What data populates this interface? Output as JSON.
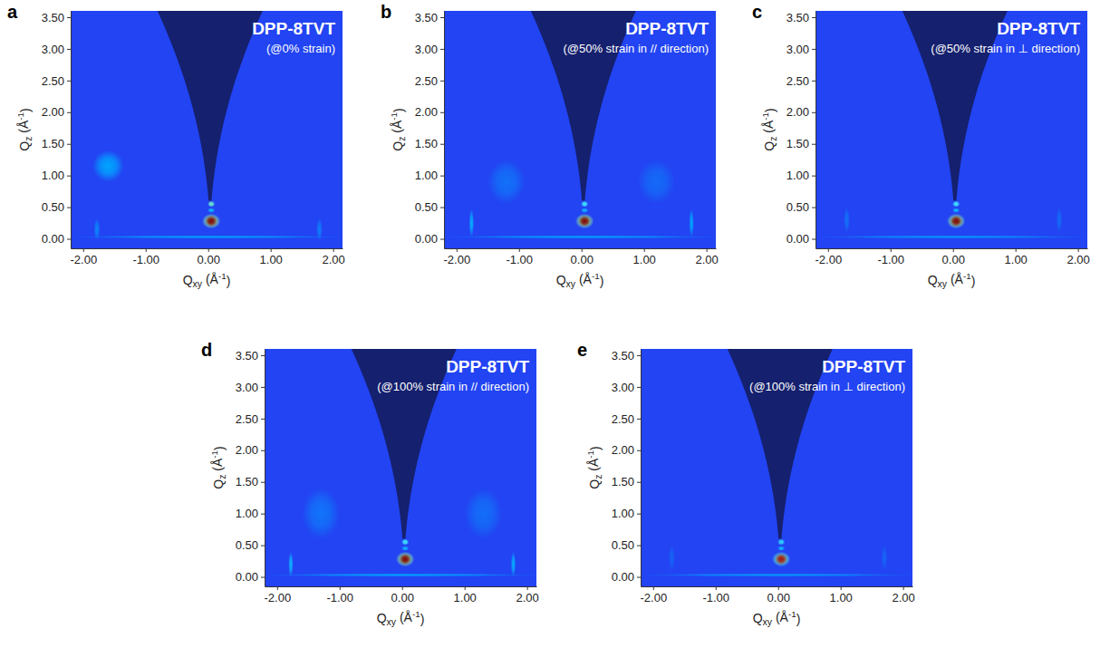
{
  "chart_data": [
    {
      "type": "heatmap",
      "panel": "a",
      "title": "DPP-8TVT",
      "subtitle": "(@0% strain)",
      "x_label": "Qxy (Å-1)",
      "y_label": "Qz (Å-1)",
      "xlim": [
        -2.2,
        2.15
      ],
      "ylim": [
        -0.15,
        3.6
      ],
      "xticks": [
        {
          "value": -2,
          "label": "-2.00"
        },
        {
          "value": -1,
          "label": "-1.00"
        },
        {
          "value": 0,
          "label": "0.00"
        },
        {
          "value": 1,
          "label": "1.00"
        },
        {
          "value": 2,
          "label": "2.00"
        }
      ],
      "yticks": [
        {
          "value": 0,
          "label": "0.00"
        },
        {
          "value": 0.5,
          "label": "0.50"
        },
        {
          "value": 1,
          "label": "1.00"
        },
        {
          "value": 1.5,
          "label": "1.50"
        },
        {
          "value": 2,
          "label": "2.00"
        },
        {
          "value": 2.5,
          "label": "2.50"
        },
        {
          "value": 3,
          "label": "3.00"
        },
        {
          "value": 3.5,
          "label": "3.50"
        }
      ],
      "color_range": [
        0,
        1
      ],
      "spots": {
        "qxy": [
          0.0,
          -1.6,
          -1.78,
          1.78,
          0.05,
          0.05,
          0.05,
          0.05
        ],
        "qz": [
          0.03,
          1.15,
          0.15,
          0.15,
          0.45,
          0.55,
          0.28,
          0.28
        ],
        "intensity": [
          0.28,
          0.3,
          0.2,
          0.18,
          0.35,
          0.55,
          0.6,
          1.0
        ],
        "qxy_width": [
          4.4,
          0.5,
          0.1,
          0.1,
          0.12,
          0.12,
          0.3,
          0.2
        ],
        "qz_width": [
          0.05,
          0.5,
          0.35,
          0.35,
          0.08,
          0.1,
          0.24,
          0.18
        ]
      }
    },
    {
      "type": "heatmap",
      "panel": "b",
      "title": "DPP-8TVT",
      "subtitle": "(@50% strain in // direction)",
      "x_label": "Qxy (Å-1)",
      "y_label": "Qz (Å-1)",
      "xlim": [
        -2.2,
        2.15
      ],
      "ylim": [
        -0.15,
        3.6
      ],
      "xticks": [
        {
          "value": -2,
          "label": "-2.00"
        },
        {
          "value": -1,
          "label": "-1.00"
        },
        {
          "value": 0,
          "label": "0.00"
        },
        {
          "value": 1,
          "label": "1.00"
        },
        {
          "value": 2,
          "label": "2.00"
        }
      ],
      "yticks": [
        {
          "value": 0,
          "label": "0.00"
        },
        {
          "value": 0.5,
          "label": "0.50"
        },
        {
          "value": 1,
          "label": "1.00"
        },
        {
          "value": 1.5,
          "label": "1.50"
        },
        {
          "value": 2,
          "label": "2.00"
        },
        {
          "value": 2.5,
          "label": "2.50"
        },
        {
          "value": 3,
          "label": "3.00"
        },
        {
          "value": 3.5,
          "label": "3.50"
        }
      ],
      "color_range": [
        0,
        1
      ],
      "spots": {
        "qxy": [
          0.0,
          -1.2,
          1.2,
          -1.76,
          1.76,
          0.05,
          0.05,
          0.05,
          0.05
        ],
        "qz": [
          0.03,
          0.9,
          0.9,
          0.25,
          0.25,
          0.45,
          0.55,
          0.28,
          0.28
        ],
        "intensity": [
          0.28,
          0.14,
          0.12,
          0.32,
          0.3,
          0.35,
          0.5,
          0.6,
          1.0
        ],
        "qxy_width": [
          4.4,
          0.6,
          0.6,
          0.08,
          0.08,
          0.12,
          0.12,
          0.3,
          0.2
        ],
        "qz_width": [
          0.05,
          0.7,
          0.7,
          0.45,
          0.45,
          0.08,
          0.1,
          0.24,
          0.18
        ]
      }
    },
    {
      "type": "heatmap",
      "panel": "c",
      "title": "DPP-8TVT",
      "subtitle": "(@50% strain in ⊥ direction)",
      "x_label": "Qxy (Å-1)",
      "y_label": "Qz (Å-1)",
      "xlim": [
        -2.2,
        2.15
      ],
      "ylim": [
        -0.15,
        3.6
      ],
      "xticks": [
        {
          "value": -2,
          "label": "-2.00"
        },
        {
          "value": -1,
          "label": "-1.00"
        },
        {
          "value": 0,
          "label": "0.00"
        },
        {
          "value": 1,
          "label": "1.00"
        },
        {
          "value": 2,
          "label": "2.00"
        }
      ],
      "yticks": [
        {
          "value": 0,
          "label": "0.00"
        },
        {
          "value": 0.5,
          "label": "0.50"
        },
        {
          "value": 1,
          "label": "1.00"
        },
        {
          "value": 1.5,
          "label": "1.50"
        },
        {
          "value": 2,
          "label": "2.00"
        },
        {
          "value": 2.5,
          "label": "2.50"
        },
        {
          "value": 3,
          "label": "3.00"
        },
        {
          "value": 3.5,
          "label": "3.50"
        }
      ],
      "color_range": [
        0,
        1
      ],
      "spots": {
        "qxy": [
          0.0,
          -1.7,
          1.7,
          0.05,
          0.05,
          0.05,
          0.05
        ],
        "qz": [
          0.03,
          0.3,
          0.3,
          0.45,
          0.55,
          0.28,
          0.28
        ],
        "intensity": [
          0.25,
          0.14,
          0.12,
          0.35,
          0.5,
          0.6,
          1.0
        ],
        "qxy_width": [
          4.4,
          0.1,
          0.1,
          0.12,
          0.12,
          0.3,
          0.2
        ],
        "qz_width": [
          0.05,
          0.4,
          0.4,
          0.08,
          0.1,
          0.24,
          0.18
        ]
      }
    },
    {
      "type": "heatmap",
      "panel": "d",
      "title": "DPP-8TVT",
      "subtitle": "(@100% strain in // direction)",
      "x_label": "Qxy (Å-1)",
      "y_label": "Qz (Å-1)",
      "xlim": [
        -2.2,
        2.15
      ],
      "ylim": [
        -0.15,
        3.6
      ],
      "xticks": [
        {
          "value": -2,
          "label": "-2.00"
        },
        {
          "value": -1,
          "label": "-1.00"
        },
        {
          "value": 0,
          "label": "0.00"
        },
        {
          "value": 1,
          "label": "1.00"
        },
        {
          "value": 2,
          "label": "2.00"
        }
      ],
      "yticks": [
        {
          "value": 0,
          "label": "0.00"
        },
        {
          "value": 0.5,
          "label": "0.50"
        },
        {
          "value": 1,
          "label": "1.00"
        },
        {
          "value": 1.5,
          "label": "1.50"
        },
        {
          "value": 2,
          "label": "2.00"
        },
        {
          "value": 2.5,
          "label": "2.50"
        },
        {
          "value": 3,
          "label": "3.00"
        },
        {
          "value": 3.5,
          "label": "3.50"
        }
      ],
      "color_range": [
        0,
        1
      ],
      "spots": {
        "qxy": [
          0.0,
          -1.3,
          1.3,
          -1.78,
          1.78,
          0.05,
          0.05,
          0.05,
          0.05
        ],
        "qz": [
          0.03,
          1.0,
          1.0,
          0.2,
          0.2,
          0.45,
          0.55,
          0.28,
          0.28
        ],
        "intensity": [
          0.28,
          0.15,
          0.13,
          0.34,
          0.32,
          0.35,
          0.5,
          0.6,
          1.0
        ],
        "qxy_width": [
          4.4,
          0.6,
          0.6,
          0.08,
          0.08,
          0.12,
          0.12,
          0.3,
          0.2
        ],
        "qz_width": [
          0.05,
          0.8,
          0.8,
          0.4,
          0.4,
          0.08,
          0.1,
          0.24,
          0.18
        ]
      }
    },
    {
      "type": "heatmap",
      "panel": "e",
      "title": "DPP-8TVT",
      "subtitle": "(@100% strain in ⊥ direction)",
      "x_label": "Qxy (Å-1)",
      "y_label": "Qz (Å-1)",
      "xlim": [
        -2.2,
        2.15
      ],
      "ylim": [
        -0.15,
        3.6
      ],
      "xticks": [
        {
          "value": -2,
          "label": "-2.00"
        },
        {
          "value": -1,
          "label": "-1.00"
        },
        {
          "value": 0,
          "label": "0.00"
        },
        {
          "value": 1,
          "label": "1.00"
        },
        {
          "value": 2,
          "label": "2.00"
        }
      ],
      "yticks": [
        {
          "value": 0,
          "label": "0.00"
        },
        {
          "value": 0.5,
          "label": "0.50"
        },
        {
          "value": 1,
          "label": "1.00"
        },
        {
          "value": 1.5,
          "label": "1.50"
        },
        {
          "value": 2,
          "label": "2.00"
        },
        {
          "value": 2.5,
          "label": "2.50"
        },
        {
          "value": 3,
          "label": "3.00"
        },
        {
          "value": 3.5,
          "label": "3.50"
        }
      ],
      "color_range": [
        0,
        1
      ],
      "spots": {
        "qxy": [
          0.0,
          -1.7,
          1.7,
          0.05,
          0.05,
          0.05,
          0.05
        ],
        "qz": [
          0.03,
          0.3,
          0.3,
          0.45,
          0.55,
          0.28,
          0.28
        ],
        "intensity": [
          0.25,
          0.1,
          0.1,
          0.35,
          0.45,
          0.55,
          0.95
        ],
        "qxy_width": [
          4.4,
          0.1,
          0.1,
          0.12,
          0.12,
          0.3,
          0.2
        ],
        "qz_width": [
          0.05,
          0.4,
          0.4,
          0.08,
          0.1,
          0.24,
          0.18
        ]
      }
    }
  ]
}
